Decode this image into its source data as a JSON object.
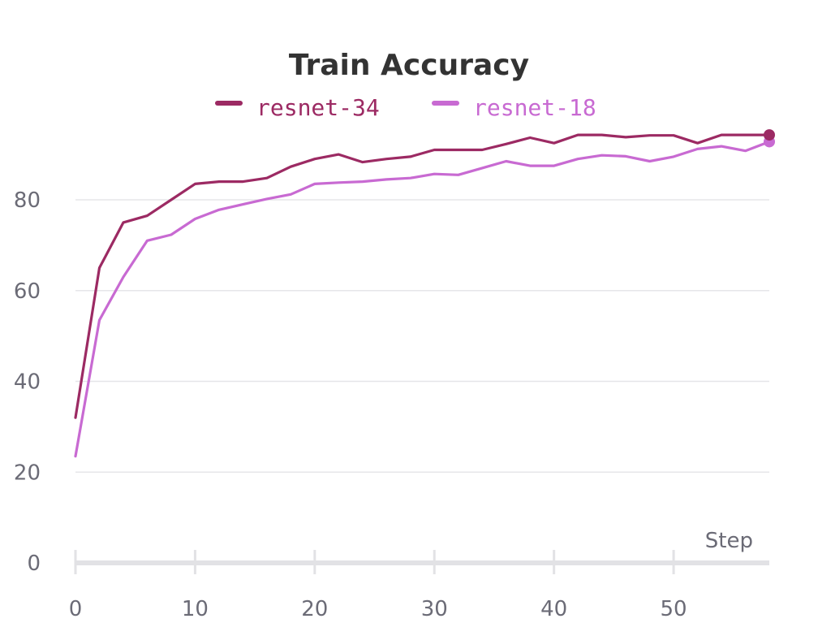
{
  "chart_data": {
    "type": "line",
    "title": "Train Accuracy",
    "xlabel": "Step",
    "ylabel": "",
    "xlim": [
      0,
      58
    ],
    "ylim": [
      0,
      95
    ],
    "x_ticks": [
      "0",
      "10",
      "20",
      "30",
      "40",
      "50"
    ],
    "y_ticks": [
      "0",
      "20",
      "40",
      "60",
      "80"
    ],
    "grid": true,
    "legend_position": "top-center",
    "series": [
      {
        "name": "resnet-34",
        "color": "#9c2a63",
        "x": [
          0,
          2,
          4,
          6,
          8,
          10,
          12,
          14,
          16,
          18,
          20,
          22,
          24,
          26,
          28,
          30,
          32,
          34,
          36,
          38,
          40,
          42,
          44,
          46,
          48,
          50,
          52,
          54,
          56,
          58
        ],
        "y": [
          32,
          65,
          75,
          76.5,
          80,
          83.5,
          84,
          84,
          84.8,
          87.3,
          89,
          90,
          88.3,
          89,
          89.5,
          91,
          91,
          91,
          92.3,
          93.7,
          92.5,
          94.3,
          94.3,
          93.8,
          94.2,
          94.2,
          92.5,
          94.3,
          94.3,
          94.3
        ]
      },
      {
        "name": "resnet-18",
        "color": "#c86ad2",
        "x": [
          0,
          2,
          4,
          6,
          8,
          10,
          12,
          14,
          16,
          18,
          20,
          22,
          24,
          26,
          28,
          30,
          32,
          34,
          36,
          38,
          40,
          42,
          44,
          46,
          48,
          50,
          52,
          54,
          56,
          58
        ],
        "y": [
          23.5,
          53.5,
          63,
          71,
          72.3,
          75.8,
          77.8,
          79,
          80.2,
          81.2,
          83.5,
          83.8,
          84,
          84.5,
          84.8,
          85.7,
          85.5,
          87,
          88.5,
          87.5,
          87.5,
          89,
          89.8,
          89.6,
          88.5,
          89.5,
          91.2,
          91.8,
          90.8,
          92.8
        ]
      }
    ]
  }
}
